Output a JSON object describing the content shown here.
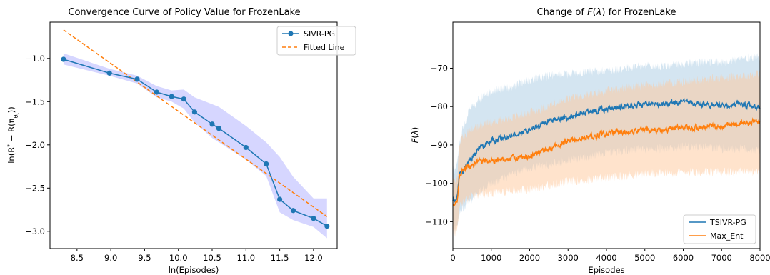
{
  "chart_data": [
    {
      "type": "line",
      "title": "Convergence Curve of Policy Value for FrozenLake",
      "xlabel": "ln(Episodes)",
      "ylabel": "ln(R* − R(π_θ_t))",
      "xlim": [
        8.1,
        12.35
      ],
      "ylim": [
        -3.2,
        -0.58
      ],
      "xticks": [
        8.5,
        9.0,
        9.5,
        10.0,
        10.5,
        11.0,
        11.5,
        12.0
      ],
      "xtick_labels": [
        "8.5",
        "9.0",
        "9.5",
        "10.0",
        "10.5",
        "11.0",
        "11.5",
        "12.0"
      ],
      "yticks": [
        -1.0,
        -1.5,
        -2.0,
        -2.5,
        -3.0
      ],
      "ytick_labels": [
        "−1.0",
        "−1.5",
        "−2.0",
        "−2.5",
        "−3.0"
      ],
      "grid": false,
      "legend_position": "top-right",
      "series": [
        {
          "name": "SIVR-PG",
          "color": "#1f77b4",
          "marker": "circle",
          "x": [
            8.3,
            8.98,
            9.39,
            9.68,
            9.9,
            10.08,
            10.24,
            10.5,
            10.6,
            11.0,
            11.3,
            11.5,
            11.7,
            12.0,
            12.2
          ],
          "y": [
            -1.01,
            -1.17,
            -1.24,
            -1.39,
            -1.44,
            -1.47,
            -1.62,
            -1.76,
            -1.81,
            -2.03,
            -2.22,
            -2.63,
            -2.76,
            -2.85,
            -2.94
          ],
          "band_upper": [
            -0.94,
            -1.12,
            -1.2,
            -1.32,
            -1.37,
            -1.36,
            -1.45,
            -1.53,
            -1.56,
            -1.78,
            -1.97,
            -2.14,
            -2.37,
            -2.62,
            -2.62
          ],
          "band_lower": [
            -1.07,
            -1.2,
            -1.29,
            -1.45,
            -1.5,
            -1.58,
            -1.74,
            -1.92,
            -1.97,
            -2.17,
            -2.36,
            -2.78,
            -2.87,
            -2.95,
            -3.08
          ],
          "band_color": "#0000ff"
        },
        {
          "name": "Fitted Line",
          "color": "#ff7f0e",
          "style": "dashed",
          "x": [
            8.3,
            12.2
          ],
          "y": [
            -0.67,
            -2.83
          ]
        }
      ]
    },
    {
      "type": "line",
      "title": "Change of F(λ) for FrozenLake",
      "xlabel": "Episodes",
      "ylabel": "F(λ)",
      "xlim": [
        0,
        8000
      ],
      "ylim": [
        -117,
        -58
      ],
      "xticks": [
        0,
        1000,
        2000,
        3000,
        4000,
        5000,
        6000,
        7000,
        8000
      ],
      "xtick_labels": [
        "0",
        "1000",
        "2000",
        "3000",
        "4000",
        "5000",
        "6000",
        "7000",
        "8000"
      ],
      "yticks": [
        -70,
        -80,
        -90,
        -100,
        -110
      ],
      "ytick_labels": [
        "−70",
        "−80",
        "−90",
        "−100",
        "−110"
      ],
      "grid": false,
      "legend_position": "bottom-right",
      "series": [
        {
          "name": "TSIVR-PG",
          "color": "#1f77b4",
          "band_color": "#a9cce3",
          "x": [
            0,
            60,
            120,
            160,
            200,
            250,
            300,
            400,
            500,
            700,
            1000,
            1500,
            2000,
            2500,
            3000,
            3500,
            4000,
            4500,
            5000,
            5500,
            6000,
            6500,
            7000,
            7500,
            8000
          ],
          "y": [
            -104,
            -105,
            -103,
            -98,
            -97,
            -97,
            -96,
            -95,
            -93,
            -91,
            -89,
            -87.5,
            -86,
            -84,
            -83,
            -81.5,
            -80.5,
            -80,
            -79.5,
            -79.5,
            -79,
            -79.5,
            -80,
            -79.5,
            -80.5
          ],
          "band_upper": [
            -96,
            -97,
            -94,
            -90,
            -88,
            -86,
            -85,
            -82,
            -80,
            -78,
            -76,
            -75,
            -73,
            -72,
            -71.5,
            -71,
            -70.5,
            -70,
            -69.5,
            -69.5,
            -69,
            -68.5,
            -68.5,
            -67.5,
            -67
          ],
          "band_lower": [
            -110,
            -112,
            -111,
            -108,
            -107,
            -106.5,
            -106,
            -105,
            -104,
            -102,
            -100,
            -98,
            -96,
            -95,
            -94,
            -93,
            -92,
            -91.5,
            -91,
            -91,
            -90.5,
            -90.5,
            -91,
            -91,
            -91.5
          ]
        },
        {
          "name": "Max_Ent",
          "color": "#ff7f0e",
          "band_color": "#ffc89a",
          "x": [
            0,
            60,
            120,
            160,
            200,
            250,
            300,
            400,
            500,
            700,
            1000,
            1500,
            2000,
            2500,
            3000,
            3500,
            4000,
            4500,
            5000,
            5500,
            6000,
            6500,
            7000,
            7500,
            8000
          ],
          "y": [
            -105,
            -105.5,
            -104,
            -99,
            -97,
            -96.5,
            -96,
            -95.5,
            -95,
            -94.5,
            -94,
            -93.5,
            -93,
            -91,
            -89,
            -88,
            -87,
            -86.5,
            -86,
            -86,
            -85.5,
            -85.5,
            -85,
            -84.5,
            -84
          ],
          "band_upper": [
            -98,
            -99,
            -98,
            -91,
            -89,
            -88,
            -87.5,
            -86.5,
            -86,
            -85,
            -84,
            -83,
            -81.5,
            -80,
            -78,
            -77,
            -76,
            -75,
            -74.5,
            -74,
            -73.5,
            -73,
            -72.5,
            -72,
            -71.5
          ],
          "band_lower": [
            -112,
            -113,
            -112,
            -107,
            -105.5,
            -105,
            -104.5,
            -104,
            -103.5,
            -103,
            -102.5,
            -102,
            -101.5,
            -100.5,
            -99.5,
            -99,
            -98.5,
            -98,
            -97.5,
            -97.5,
            -97,
            -97,
            -97,
            -97,
            -97
          ]
        }
      ]
    }
  ]
}
